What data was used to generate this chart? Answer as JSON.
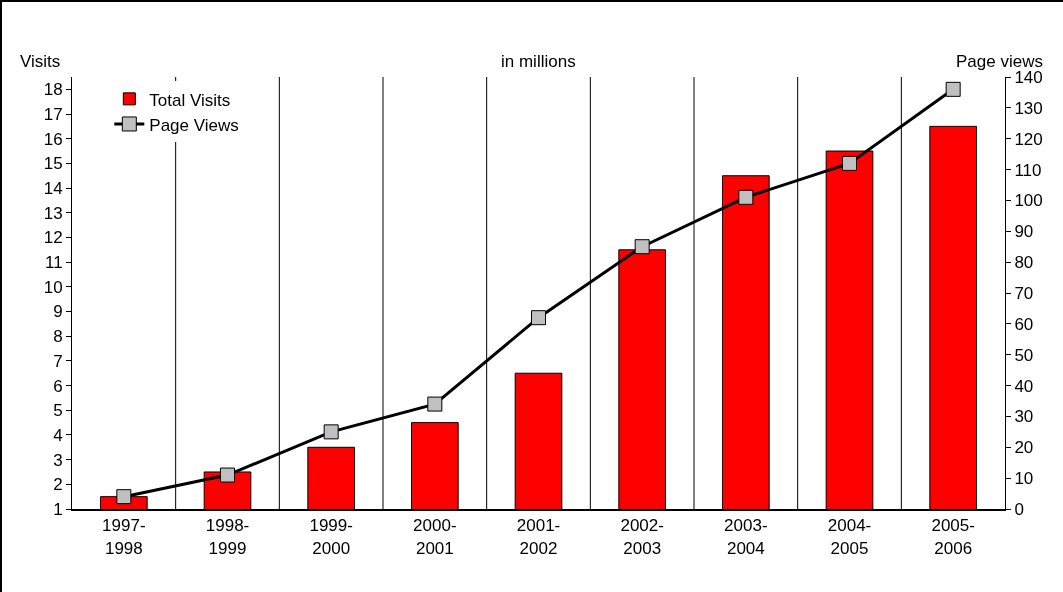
{
  "chart_data": {
    "type": "bar",
    "subtitle": "in millions",
    "ylabel": "Visits",
    "y2label": "Page views",
    "categories": [
      "1997-1998",
      "1998-1999",
      "1999-2000",
      "2000-2001",
      "2001-2002",
      "2002-2003",
      "2003-2004",
      "2004-2005",
      "2005-2006"
    ],
    "series": [
      {
        "name": "Total Visits",
        "color": "#ff0000",
        "values": [
          1.5,
          2.5,
          3.5,
          4.5,
          6.5,
          11.5,
          14.5,
          15.5,
          16.5
        ]
      },
      {
        "name": "Page Views",
        "type": "line",
        "axis": "y2",
        "color": "#000000",
        "values": [
          4,
          11,
          25,
          34,
          62,
          85,
          101,
          112,
          136
        ]
      }
    ],
    "ylim": [
      1,
      18.5
    ],
    "yticks": [
      1,
      2,
      3,
      4,
      5,
      6,
      7,
      8,
      9,
      10,
      11,
      12,
      13,
      14,
      15,
      16,
      17,
      18
    ],
    "y2lim": [
      0,
      140
    ],
    "y2ticks": [
      0,
      10,
      20,
      30,
      40,
      50,
      60,
      70,
      80,
      90,
      100,
      110,
      120,
      130,
      140
    ],
    "grid": "x",
    "legend": "top left",
    "marker": "square",
    "line_style": "solid"
  }
}
